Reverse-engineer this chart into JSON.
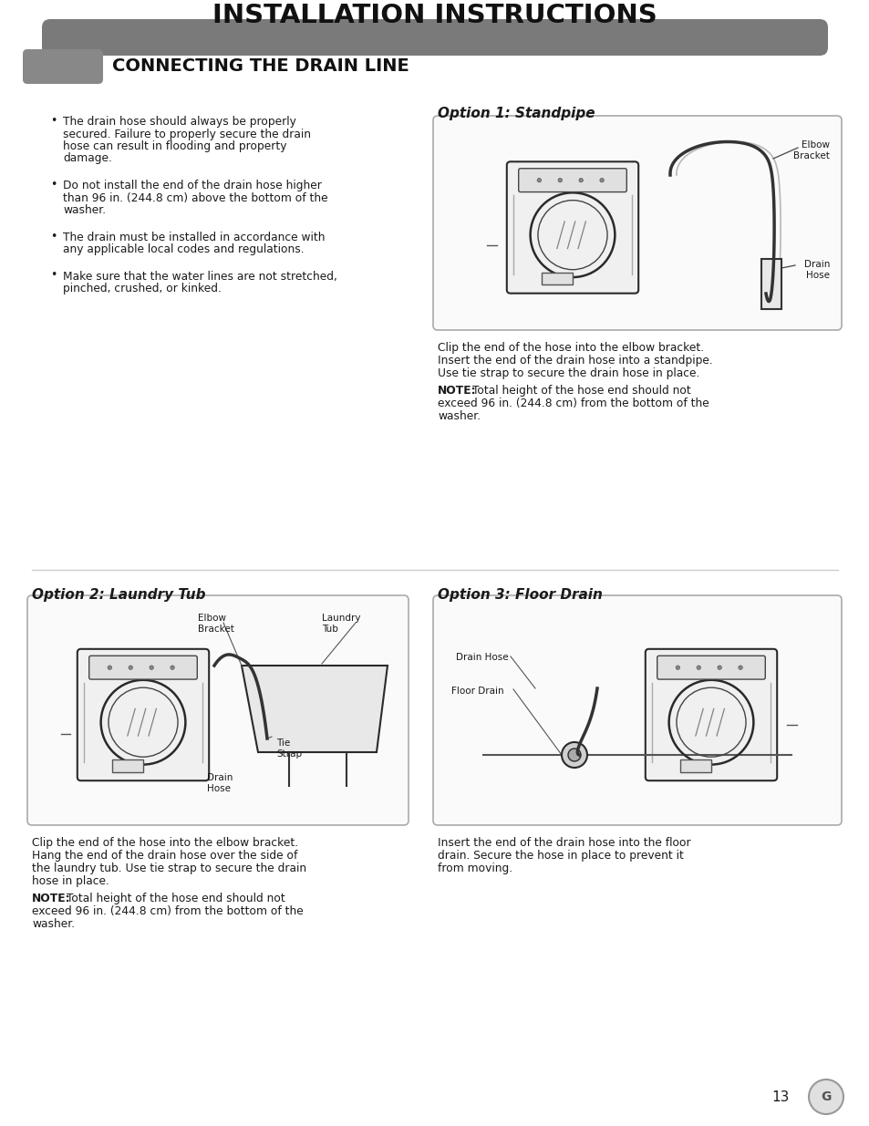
{
  "title": "INSTALLATION INSTRUCTIONS",
  "section_title": "CONNECTING THE DRAIN LINE",
  "background_color": "#ffffff",
  "title_bar_color": "#7a7a7a",
  "section_bar_color": "#888888",
  "text_color": "#1a1a1a",
  "diagram_border_color": "#aaaaaa",
  "bullet_points": [
    "The drain hose should always be properly\nsecured. Failure to properly secure the drain\nhose can result in flooding and property\ndamage.",
    "Do not install the end of the drain hose higher\nthan 96 in. (244.8 cm) above the bottom of the\nwasher.",
    "The drain must be installed in accordance with\nany applicable local codes and regulations.",
    "Make sure that the water lines are not stretched,\npinched, crushed, or kinked."
  ],
  "option1_title": "Option 1: Standpipe",
  "option1_desc_lines": [
    "Clip the end of the hose into the elbow bracket.",
    "Insert the end of the drain hose into a standpipe.",
    "Use tie strap to secure the drain hose in place."
  ],
  "option2_title": "Option 2: Laundry Tub",
  "option2_desc_lines": [
    "Clip the end of the hose into the elbow bracket.",
    "Hang the end of the drain hose over the side of",
    "the laundry tub. Use tie strap to secure the drain",
    "hose in place."
  ],
  "option3_title": "Option 3: Floor Drain",
  "option3_desc_lines": [
    "Insert the end of the drain hose into the floor",
    "drain. Secure the hose in place to prevent it",
    "from moving."
  ],
  "note_bold": "NOTE:",
  "note_line1": " Total height of the hose end should not",
  "note_line2": "exceed 96 in. (244.8 cm) from the bottom of the",
  "note_line3": "washer.",
  "page_number": "13"
}
